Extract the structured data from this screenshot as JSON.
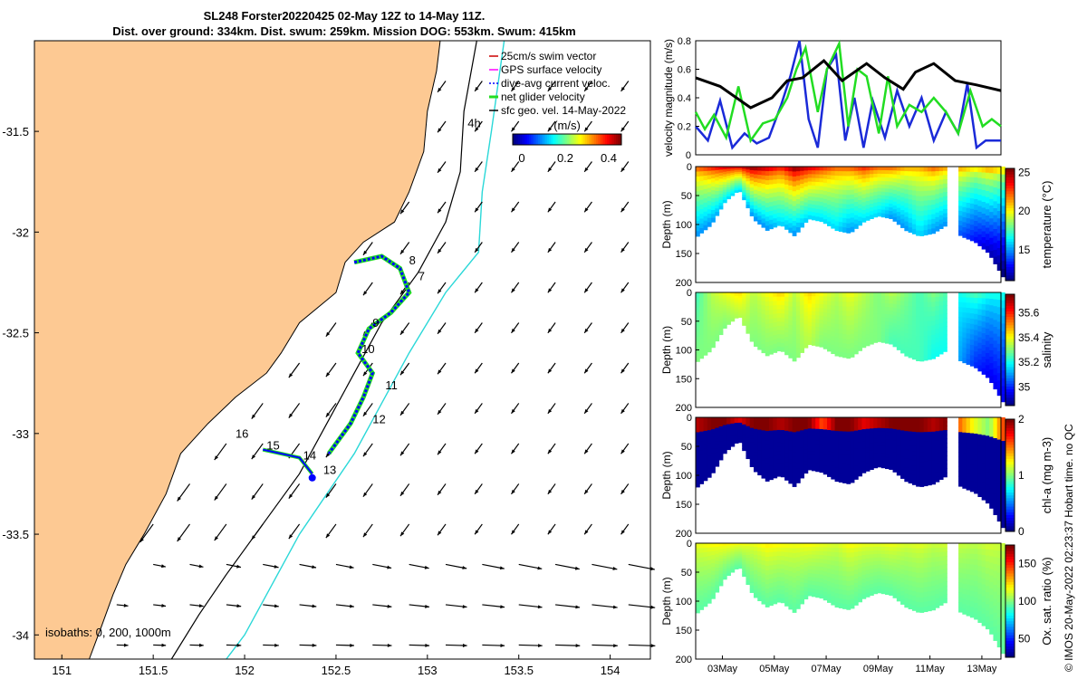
{
  "header": {
    "title_line1": "SL248 Forster20220425 02-May 12Z to 14-May 11Z.",
    "title_line2": "Dist. over ground: 334km. Dist. swum: 259km. Mission DOG: 553km. Swum: 415km"
  },
  "footer_note": "© IMOS 20-May-2022 02:23:37 Hobart time. no QC",
  "colors": {
    "land": "#fdc993",
    "shelf": "#000000",
    "contour": "#2ad8d8",
    "glider": "#0000ff",
    "net": "#22dd22",
    "ocean": "#ffffff"
  },
  "chart_data": [
    {
      "type": "scatter",
      "name": "map",
      "x_ticks": [
        "151",
        "151.5",
        "152",
        "152.5",
        "153",
        "153.5",
        "154"
      ],
      "y_ticks": [
        "-31.5",
        "-32",
        "-32.5",
        "-33",
        "-33.5",
        "-34"
      ],
      "xlim": [
        150.85,
        154.22
      ],
      "ylim": [
        -34.12,
        -31.05
      ],
      "legend": [
        "25cm/s swim vector",
        "GPS surface velocity",
        "dive-avg current veloc.",
        "net glider velocity",
        "sfc geo. vel. 14-May-2022"
      ],
      "colorbar": {
        "label": "(m/s)",
        "ticks": [
          "0",
          "0.2",
          "0.4"
        ],
        "range": [
          0,
          0.5
        ]
      },
      "isobaths_label": "isobaths: 0, 200, 1000m",
      "annotations": [
        {
          "text": "4h",
          "x": 153.22,
          "y": -31.48
        },
        {
          "text": "8",
          "x": 152.9,
          "y": -32.16
        },
        {
          "text": "7",
          "x": 152.95,
          "y": -32.24
        },
        {
          "text": "9",
          "x": 152.7,
          "y": -32.47
        },
        {
          "text": "10",
          "x": 152.64,
          "y": -32.6
        },
        {
          "text": "11",
          "x": 152.77,
          "y": -32.78
        },
        {
          "text": "12",
          "x": 152.7,
          "y": -32.95
        },
        {
          "text": "13",
          "x": 152.43,
          "y": -33.2
        },
        {
          "text": "14",
          "x": 152.32,
          "y": -33.13
        },
        {
          "text": "15",
          "x": 152.12,
          "y": -33.08
        },
        {
          "text": "16",
          "x": 151.95,
          "y": -33.02
        }
      ]
    },
    {
      "type": "line",
      "name": "velocity",
      "ylabel": "velocity magnitude (m/s)",
      "ylim": [
        0,
        0.8
      ],
      "y_ticks": [
        "0",
        "0.2",
        "0.4",
        "0.6",
        "0.8"
      ],
      "series": [
        {
          "name": "sfc geo. vel.",
          "color": "#000000",
          "x": [
            0,
            0.08,
            0.18,
            0.25,
            0.3,
            0.35,
            0.42,
            0.48,
            0.56,
            0.62,
            0.68,
            0.72,
            0.78,
            0.85,
            0.92,
            1.0
          ],
          "values": [
            0.54,
            0.48,
            0.33,
            0.4,
            0.52,
            0.54,
            0.66,
            0.52,
            0.64,
            0.54,
            0.46,
            0.58,
            0.64,
            0.52,
            0.49,
            0.45
          ]
        },
        {
          "name": "net glider velocity",
          "color": "#22dd22",
          "x": [
            0,
            0.03,
            0.06,
            0.1,
            0.14,
            0.18,
            0.22,
            0.26,
            0.3,
            0.33,
            0.36,
            0.4,
            0.43,
            0.47,
            0.5,
            0.53,
            0.56,
            0.6,
            0.63,
            0.66,
            0.7,
            0.74,
            0.78,
            0.82,
            0.86,
            0.9,
            0.94,
            0.97,
            1.0
          ],
          "values": [
            0.3,
            0.18,
            0.28,
            0.12,
            0.48,
            0.1,
            0.22,
            0.25,
            0.4,
            0.6,
            0.75,
            0.3,
            0.6,
            0.78,
            0.2,
            0.6,
            0.55,
            0.15,
            0.55,
            0.2,
            0.35,
            0.3,
            0.4,
            0.3,
            0.15,
            0.45,
            0.2,
            0.25,
            0.2
          ]
        },
        {
          "name": "dive-avg current veloc.",
          "color": "#1a2ad8",
          "x": [
            0,
            0.04,
            0.08,
            0.12,
            0.16,
            0.2,
            0.24,
            0.28,
            0.31,
            0.34,
            0.37,
            0.4,
            0.43,
            0.46,
            0.49,
            0.52,
            0.55,
            0.58,
            0.62,
            0.66,
            0.7,
            0.74,
            0.78,
            0.82,
            0.86,
            0.89,
            0.92,
            0.95,
            1.0
          ],
          "values": [
            0.2,
            0.1,
            0.38,
            0.05,
            0.15,
            0.08,
            0.12,
            0.35,
            0.55,
            0.8,
            0.25,
            0.05,
            0.6,
            0.7,
            0.1,
            0.4,
            0.05,
            0.38,
            0.12,
            0.45,
            0.2,
            0.4,
            0.1,
            0.3,
            0.15,
            0.5,
            0.05,
            0.1,
            0.1
          ]
        }
      ]
    },
    {
      "type": "heatmap",
      "name": "temperature",
      "ylabel": "Depth (m)",
      "colorbar_label": "temperature (°C)",
      "colorbar_ticks": [
        "25",
        "20",
        "15"
      ],
      "ylim": [
        0,
        200
      ],
      "y_ticks": [
        "0",
        "50",
        "100",
        "150",
        "200"
      ],
      "seabed_depth": [
        120,
        100,
        60,
        40,
        90,
        110,
        100,
        120,
        90,
        95,
        110,
        115,
        95,
        85,
        90,
        110,
        120,
        115,
        100,
        120,
        130,
        150,
        190
      ],
      "surface_value": [
        22,
        23,
        24,
        24,
        25,
        24,
        23,
        25,
        24,
        23,
        22,
        22,
        23,
        22,
        22,
        21,
        21,
        22,
        21,
        21,
        20,
        21,
        20
      ],
      "bottom_value": [
        15,
        15,
        16,
        16,
        15,
        15,
        16,
        15,
        16,
        16,
        16,
        15,
        16,
        16,
        15,
        15,
        16,
        15,
        15,
        14,
        13,
        12,
        11
      ],
      "vmin": 11,
      "vmax": 25.5
    },
    {
      "type": "heatmap",
      "name": "salinity",
      "ylabel": "Depth (m)",
      "colorbar_label": "salinity",
      "colorbar_ticks": [
        "35.6",
        "35.4",
        "35.2",
        "35"
      ],
      "ylim": [
        0,
        200
      ],
      "y_ticks": [
        "0",
        "50",
        "100",
        "150",
        "200"
      ],
      "seabed_depth": [
        120,
        100,
        60,
        40,
        90,
        110,
        100,
        120,
        90,
        95,
        110,
        115,
        95,
        85,
        90,
        110,
        120,
        115,
        100,
        120,
        130,
        150,
        190
      ],
      "surface_value": [
        35.25,
        35.35,
        35.4,
        35.45,
        35.35,
        35.4,
        35.45,
        35.35,
        35.45,
        35.4,
        35.35,
        35.4,
        35.35,
        35.3,
        35.35,
        35.3,
        35.25,
        35.3,
        35.25,
        35.2,
        35.25,
        35.2,
        35.2
      ],
      "bottom_value": [
        35.3,
        35.3,
        35.3,
        35.35,
        35.3,
        35.3,
        35.3,
        35.3,
        35.35,
        35.3,
        35.3,
        35.3,
        35.3,
        35.3,
        35.25,
        35.25,
        35.25,
        35.2,
        35.2,
        35.1,
        35.0,
        34.95,
        34.95
      ],
      "vmin": 34.85,
      "vmax": 35.75
    },
    {
      "type": "heatmap",
      "name": "chl-a",
      "ylabel": "Depth (m)",
      "colorbar_label": "chl-a (mg m-3)",
      "colorbar_ticks": [
        "2",
        "1",
        "0"
      ],
      "ylim": [
        0,
        200
      ],
      "y_ticks": [
        "0",
        "50",
        "100",
        "150",
        "200"
      ],
      "seabed_depth": [
        120,
        100,
        60,
        40,
        90,
        110,
        100,
        120,
        90,
        95,
        110,
        115,
        95,
        85,
        90,
        110,
        120,
        115,
        100,
        120,
        130,
        150,
        190
      ],
      "surface_value": [
        1.9,
        2,
        2,
        1.8,
        2,
        2,
        1.9,
        2,
        2,
        1.6,
        2,
        2,
        1.8,
        1.9,
        2,
        2,
        2,
        1.9,
        2,
        1.5,
        1.2,
        1.0,
        1.6
      ],
      "bottom_value": [
        0.05,
        0.05,
        0.05,
        0.05,
        0.05,
        0.05,
        0.05,
        0.05,
        0.05,
        0.05,
        0.05,
        0.05,
        0.05,
        0.05,
        0.05,
        0.05,
        0.05,
        0.05,
        0.05,
        0.05,
        0.05,
        0.05,
        0.05
      ],
      "vmin": 0,
      "vmax": 2
    },
    {
      "type": "heatmap",
      "name": "oxygen",
      "ylabel": "Depth (m)",
      "colorbar_label": "Ox. sat. ratio (%)",
      "colorbar_ticks": [
        "150",
        "100",
        "50"
      ],
      "ylim": [
        0,
        200
      ],
      "y_ticks": [
        "0",
        "50",
        "100",
        "150",
        "200"
      ],
      "seabed_depth": [
        120,
        100,
        60,
        40,
        90,
        110,
        100,
        120,
        90,
        95,
        110,
        115,
        95,
        85,
        90,
        110,
        120,
        115,
        100,
        120,
        130,
        150,
        190
      ],
      "surface_value": [
        115,
        118,
        120,
        118,
        115,
        120,
        118,
        116,
        118,
        115,
        112,
        118,
        115,
        114,
        116,
        112,
        114,
        110,
        112,
        110,
        108,
        112,
        110
      ],
      "bottom_value": [
        95,
        95,
        95,
        95,
        95,
        95,
        95,
        95,
        95,
        95,
        95,
        95,
        95,
        95,
        95,
        95,
        95,
        95,
        95,
        95,
        95,
        95,
        95
      ],
      "vmin": 25,
      "vmax": 175,
      "x_ticks": [
        "03May",
        "05May",
        "07May",
        "09May",
        "11May",
        "13May"
      ]
    }
  ]
}
